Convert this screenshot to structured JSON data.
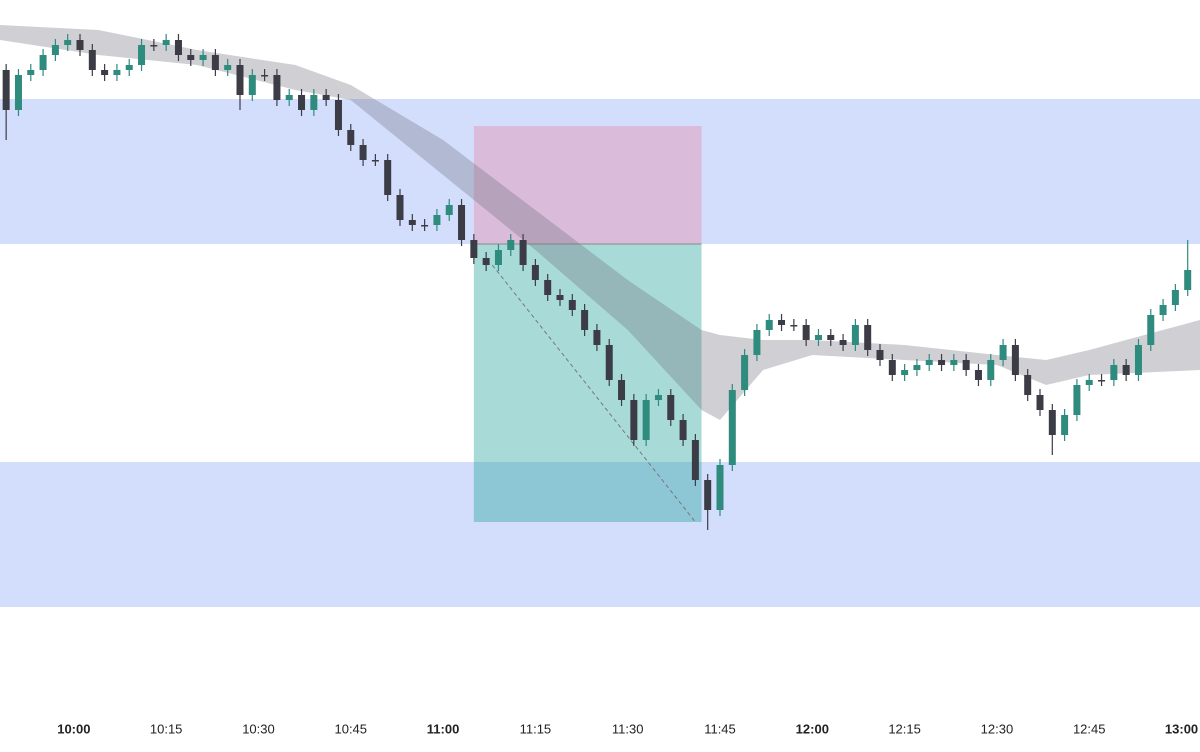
{
  "chart_data": {
    "type": "candlestick",
    "x": [
      "09:49",
      "09:51",
      "09:53",
      "09:55",
      "09:57",
      "09:59",
      "10:01",
      "10:03",
      "10:05",
      "10:07",
      "10:09",
      "10:11",
      "10:13",
      "10:15",
      "10:17",
      "10:19",
      "10:21",
      "10:23",
      "10:25",
      "10:27",
      "10:29",
      "10:31",
      "10:33",
      "10:35",
      "10:37",
      "10:39",
      "10:41",
      "10:43",
      "10:45",
      "10:47",
      "10:49",
      "10:51",
      "10:53",
      "10:55",
      "10:57",
      "10:59",
      "11:01",
      "11:03",
      "11:05",
      "11:07",
      "11:09",
      "11:11",
      "11:13",
      "11:15",
      "11:17",
      "11:19",
      "11:21",
      "11:23",
      "11:25",
      "11:27",
      "11:29",
      "11:31",
      "11:33",
      "11:35",
      "11:37",
      "11:39",
      "11:41",
      "11:43",
      "11:45",
      "11:47",
      "11:49",
      "11:51",
      "11:53",
      "11:55",
      "11:57",
      "11:59",
      "12:01",
      "12:03",
      "12:05",
      "12:07",
      "12:09",
      "12:11",
      "12:13",
      "12:15",
      "12:17",
      "12:19",
      "12:21",
      "12:23",
      "12:25",
      "12:27",
      "12:29",
      "12:31",
      "12:33",
      "12:35",
      "12:37",
      "12:39",
      "12:41",
      "12:43",
      "12:45",
      "12:47",
      "12:49",
      "12:51",
      "12:53",
      "12:55",
      "12:57",
      "12:59",
      "13:01"
    ],
    "open": [
      640,
      600,
      635,
      640,
      655,
      665,
      670,
      660,
      640,
      635,
      640,
      645,
      665,
      665,
      670,
      655,
      650,
      655,
      640,
      645,
      615,
      635,
      635,
      610,
      615,
      600,
      615,
      610,
      580,
      565,
      550,
      550,
      515,
      490,
      485,
      485,
      495,
      505,
      470,
      452,
      445,
      460,
      470,
      445,
      430,
      415,
      410,
      400,
      380,
      365,
      330,
      310,
      270,
      310,
      315,
      290,
      270,
      230,
      200,
      245,
      320,
      355,
      380,
      390,
      385,
      385,
      370,
      375,
      370,
      365,
      385,
      360,
      350,
      335,
      340,
      345,
      350,
      345,
      350,
      340,
      330,
      350,
      365,
      335,
      315,
      300,
      275,
      295,
      325,
      330,
      330,
      345,
      335,
      365,
      395,
      405,
      420
    ],
    "high": [
      646,
      641,
      646,
      661,
      671,
      676,
      676,
      666,
      646,
      646,
      651,
      671,
      671,
      676,
      676,
      661,
      661,
      661,
      651,
      651,
      641,
      641,
      641,
      621,
      621,
      621,
      621,
      616,
      586,
      571,
      556,
      556,
      521,
      496,
      491,
      501,
      511,
      511,
      476,
      458,
      466,
      476,
      476,
      451,
      436,
      421,
      416,
      406,
      386,
      371,
      336,
      316,
      316,
      321,
      321,
      296,
      276,
      236,
      251,
      326,
      361,
      386,
      396,
      396,
      391,
      391,
      381,
      381,
      376,
      391,
      391,
      366,
      356,
      346,
      351,
      356,
      356,
      356,
      356,
      346,
      356,
      371,
      371,
      341,
      321,
      306,
      301,
      331,
      336,
      336,
      351,
      351,
      371,
      401,
      411,
      426,
      470
    ],
    "low": [
      570,
      594,
      629,
      634,
      649,
      659,
      654,
      634,
      629,
      629,
      634,
      639,
      659,
      659,
      649,
      644,
      644,
      634,
      634,
      600,
      609,
      629,
      604,
      604,
      594,
      594,
      604,
      574,
      559,
      544,
      544,
      509,
      484,
      479,
      479,
      479,
      489,
      464,
      446,
      439,
      439,
      454,
      439,
      424,
      409,
      404,
      394,
      374,
      359,
      324,
      304,
      264,
      264,
      304,
      284,
      264,
      224,
      180,
      194,
      239,
      314,
      349,
      374,
      379,
      379,
      364,
      364,
      364,
      359,
      359,
      354,
      344,
      329,
      329,
      334,
      339,
      339,
      339,
      334,
      324,
      324,
      344,
      329,
      309,
      294,
      255,
      269,
      289,
      319,
      324,
      324,
      329,
      329,
      359,
      389,
      399,
      414
    ],
    "close": [
      600,
      635,
      640,
      655,
      665,
      670,
      660,
      640,
      635,
      640,
      645,
      665,
      665,
      670,
      655,
      650,
      655,
      640,
      645,
      615,
      635,
      635,
      610,
      615,
      600,
      615,
      610,
      580,
      565,
      550,
      550,
      515,
      490,
      485,
      485,
      495,
      505,
      470,
      452,
      445,
      460,
      470,
      445,
      430,
      415,
      410,
      400,
      380,
      365,
      330,
      310,
      270,
      310,
      315,
      290,
      270,
      230,
      200,
      245,
      320,
      355,
      380,
      390,
      385,
      385,
      370,
      375,
      370,
      365,
      385,
      360,
      350,
      335,
      340,
      345,
      350,
      345,
      350,
      340,
      330,
      350,
      365,
      335,
      315,
      300,
      275,
      295,
      325,
      330,
      330,
      345,
      335,
      365,
      395,
      405,
      420,
      440
    ],
    "up_color": "#2e8b7e",
    "down_color": "#3c3c46",
    "xlim": [
      "09:48",
      "13:03"
    ],
    "ylim": [
      0,
      710
    ],
    "xticks": [
      "10:00",
      "10:15",
      "10:30",
      "10:45",
      "11:00",
      "11:15",
      "11:30",
      "11:45",
      "12:00",
      "12:15",
      "12:30",
      "12:45",
      "13:00"
    ],
    "zones": [
      {
        "low": 466,
        "high": 611
      },
      {
        "low": 103,
        "high": 248
      }
    ],
    "zone_color": "#d3defc",
    "band": {
      "x": [
        "09:48",
        "10:04",
        "10:20",
        "10:36",
        "10:45",
        "11:00",
        "11:15",
        "11:30",
        "11:42",
        "11:45",
        "11:52",
        "12:00",
        "12:15",
        "12:30",
        "12:38",
        "12:45",
        "13:03"
      ],
      "upper": [
        685,
        680,
        660,
        645,
        625,
        570,
        500,
        430,
        380,
        375,
        370,
        370,
        365,
        355,
        350,
        360,
        390
      ],
      "lower": [
        670,
        655,
        645,
        620,
        610,
        535,
        460,
        380,
        300,
        290,
        340,
        355,
        350,
        345,
        325,
        335,
        340
      ],
      "color": "rgba(110,110,122,0.32)"
    },
    "position": {
      "start": "11:05",
      "end": "11:42",
      "entry": 466,
      "stop": 584,
      "target": 188,
      "stop_color": "rgba(231,137,167,0.4)",
      "target_color": "rgba(38,166,154,0.4)"
    },
    "trade_path": {
      "x": [
        "11:08",
        "11:41"
      ],
      "y": [
        445,
        188
      ]
    }
  }
}
